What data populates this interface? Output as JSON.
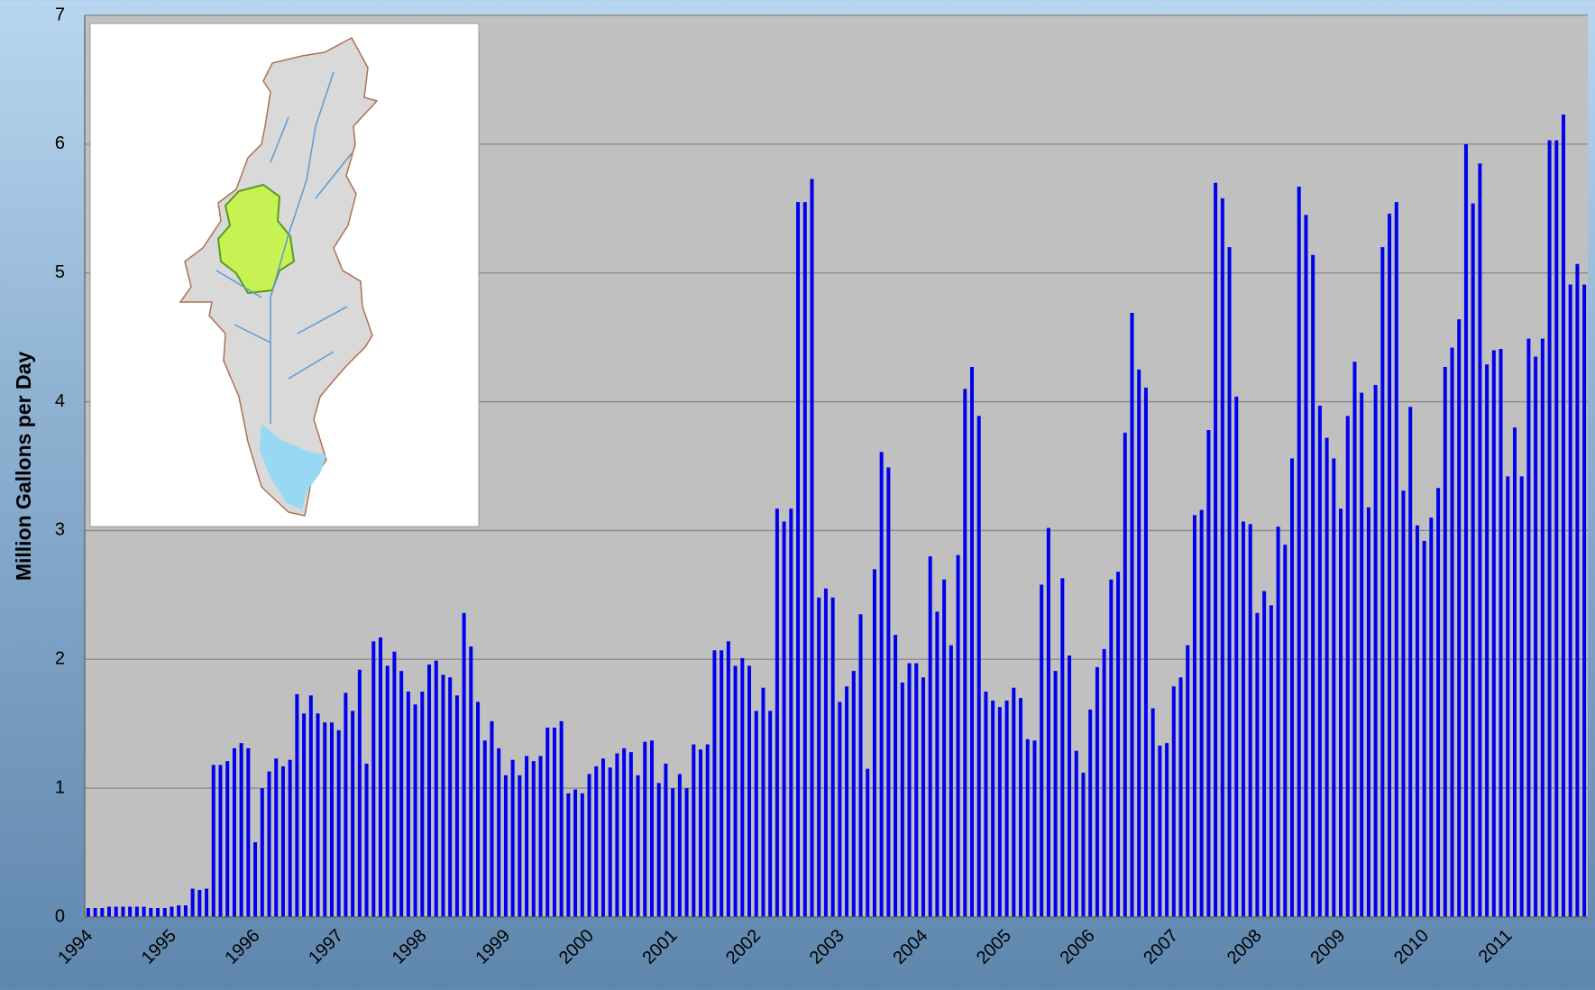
{
  "chart_data": {
    "type": "bar",
    "y_label": "Million Gallons per Day",
    "categories": [
      "1994",
      null,
      null,
      null,
      null,
      null,
      null,
      null,
      null,
      null,
      null,
      null,
      "1995",
      null,
      null,
      null,
      null,
      null,
      null,
      null,
      null,
      null,
      null,
      null,
      "1996",
      null,
      null,
      null,
      null,
      null,
      null,
      null,
      null,
      null,
      null,
      null,
      "1997",
      null,
      null,
      null,
      null,
      null,
      null,
      null,
      null,
      null,
      null,
      null,
      "1998",
      null,
      null,
      null,
      null,
      null,
      null,
      null,
      null,
      null,
      null,
      null,
      "1999",
      null,
      null,
      null,
      null,
      null,
      null,
      null,
      null,
      null,
      null,
      null,
      "2000",
      null,
      null,
      null,
      null,
      null,
      null,
      null,
      null,
      null,
      null,
      null,
      "2001",
      null,
      null,
      null,
      null,
      null,
      null,
      null,
      null,
      null,
      null,
      null,
      "2002",
      null,
      null,
      null,
      null,
      null,
      null,
      null,
      null,
      null,
      null,
      null,
      "2003",
      null,
      null,
      null,
      null,
      null,
      null,
      null,
      null,
      null,
      null,
      null,
      "2004",
      null,
      null,
      null,
      null,
      null,
      null,
      null,
      null,
      null,
      null,
      null,
      "2005",
      null,
      null,
      null,
      null,
      null,
      null,
      null,
      null,
      null,
      null,
      null,
      "2006",
      null,
      null,
      null,
      null,
      null,
      null,
      null,
      null,
      null,
      null,
      null,
      "2007",
      null,
      null,
      null,
      null,
      null,
      null,
      null,
      null,
      null,
      null,
      null,
      "2008",
      null,
      null,
      null,
      null,
      null,
      null,
      null,
      null,
      null,
      null,
      null,
      "2009",
      null,
      null,
      null,
      null,
      null,
      null,
      null,
      null,
      null,
      null,
      null,
      "2010",
      null,
      null,
      null,
      null,
      null,
      null,
      null,
      null,
      null,
      null,
      null,
      "2011",
      null,
      null,
      null,
      null,
      null,
      null,
      null,
      null,
      null,
      null,
      null
    ],
    "values": [
      0.07,
      0.07,
      0.07,
      0.08,
      0.08,
      0.08,
      0.08,
      0.08,
      0.08,
      0.07,
      0.07,
      0.07,
      0.08,
      0.09,
      0.09,
      0.22,
      0.21,
      0.22,
      1.18,
      1.18,
      1.21,
      1.31,
      1.35,
      1.31,
      0.58,
      1.0,
      1.13,
      1.23,
      1.17,
      1.22,
      1.73,
      1.58,
      1.72,
      1.58,
      1.51,
      1.51,
      1.45,
      1.74,
      1.6,
      1.92,
      1.19,
      2.14,
      2.17,
      1.95,
      2.06,
      1.91,
      1.75,
      1.65,
      1.75,
      1.96,
      1.99,
      1.88,
      1.86,
      1.72,
      2.36,
      2.1,
      1.67,
      1.37,
      1.52,
      1.31,
      1.1,
      1.22,
      1.1,
      1.25,
      1.21,
      1.25,
      1.47,
      1.47,
      1.52,
      0.96,
      0.99,
      0.96,
      1.11,
      1.17,
      1.23,
      1.16,
      1.27,
      1.31,
      1.28,
      1.1,
      1.36,
      1.37,
      1.04,
      1.19,
      1.0,
      1.11,
      1.0,
      1.34,
      1.3,
      1.34,
      2.07,
      2.07,
      2.14,
      1.95,
      2.01,
      1.95,
      1.6,
      1.78,
      1.6,
      3.17,
      3.07,
      3.17,
      5.55,
      5.55,
      5.73,
      2.48,
      2.55,
      2.48,
      1.67,
      1.79,
      1.91,
      2.35,
      1.15,
      2.7,
      3.61,
      3.49,
      2.19,
      1.82,
      1.97,
      1.97,
      1.86,
      2.8,
      2.37,
      2.62,
      2.11,
      2.81,
      4.1,
      4.27,
      3.89,
      1.75,
      1.68,
      1.63,
      1.68,
      1.78,
      1.7,
      1.38,
      1.37,
      2.58,
      3.02,
      1.91,
      2.63,
      2.03,
      1.29,
      1.12,
      1.61,
      1.94,
      2.08,
      2.62,
      2.68,
      3.76,
      4.69,
      4.25,
      4.11,
      1.62,
      1.33,
      1.35,
      1.79,
      1.86,
      2.11,
      3.12,
      3.16,
      3.78,
      5.7,
      5.58,
      5.2,
      4.04,
      3.07,
      3.05,
      2.36,
      2.53,
      2.42,
      3.03,
      2.89,
      3.56,
      5.67,
      5.45,
      5.14,
      3.97,
      3.72,
      3.56,
      3.17,
      3.89,
      4.31,
      4.07,
      3.18,
      4.13,
      5.2,
      5.46,
      5.55,
      3.31,
      3.96,
      3.04,
      2.92,
      3.1,
      3.33,
      4.27,
      4.42,
      4.64,
      6.0,
      5.54,
      5.85,
      4.29,
      4.4,
      4.41,
      3.42,
      3.8,
      3.42,
      4.49,
      4.35,
      4.49,
      6.03,
      6.03,
      6.23,
      4.91,
      5.07,
      4.91
    ],
    "color": "#0000ee",
    "ylim": [
      0,
      7
    ],
    "yticks": [
      0,
      1,
      2,
      3,
      4,
      5,
      6,
      7
    ],
    "grid": true
  }
}
